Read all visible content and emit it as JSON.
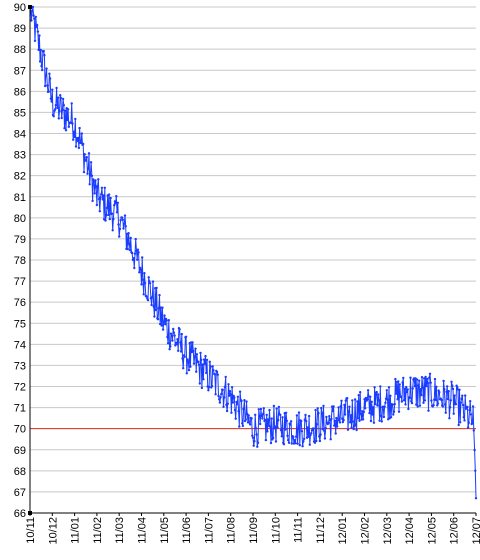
{
  "chart_data": {
    "type": "line",
    "title": "",
    "xlabel": "",
    "ylabel": "",
    "ylim": [
      66,
      90
    ],
    "y_ticks": [
      66,
      67,
      68,
      69,
      70,
      71,
      72,
      73,
      74,
      75,
      76,
      77,
      78,
      79,
      80,
      81,
      82,
      83,
      84,
      85,
      86,
      87,
      88,
      89,
      90
    ],
    "x_tick_labels": [
      "10/11",
      "10/12",
      "11/01",
      "11/02",
      "11/03",
      "11/04",
      "11/05",
      "11/06",
      "11/07",
      "11/08",
      "11/09",
      "11/10",
      "11/11",
      "11/12",
      "12/01",
      "12/02",
      "12/03",
      "12/04",
      "12/05",
      "12/06",
      "12/07"
    ],
    "grid": true,
    "reference_line": {
      "y": 70,
      "color": "#e0301e"
    },
    "series": [
      {
        "color": "#1a3cff",
        "trend_by_month": {
          "x": [
            "10/11",
            "10/12",
            "11/01",
            "11/02",
            "11/03",
            "11/04",
            "11/05",
            "11/06",
            "11/07",
            "11/08",
            "11/09",
            "11/10",
            "11/11",
            "11/12",
            "12/01",
            "12/02",
            "12/03",
            "12/04",
            "12/05",
            "12/06",
            "12/07"
          ],
          "y": [
            90.0,
            85.5,
            84.5,
            81.0,
            80.0,
            77.5,
            75.0,
            73.5,
            72.5,
            71.5,
            70.0,
            70.2,
            70.0,
            70.2,
            70.5,
            71.0,
            71.3,
            71.8,
            71.7,
            71.3,
            70.2
          ]
        },
        "final_value": 66.7,
        "noise_amplitude": 0.9
      }
    ]
  }
}
